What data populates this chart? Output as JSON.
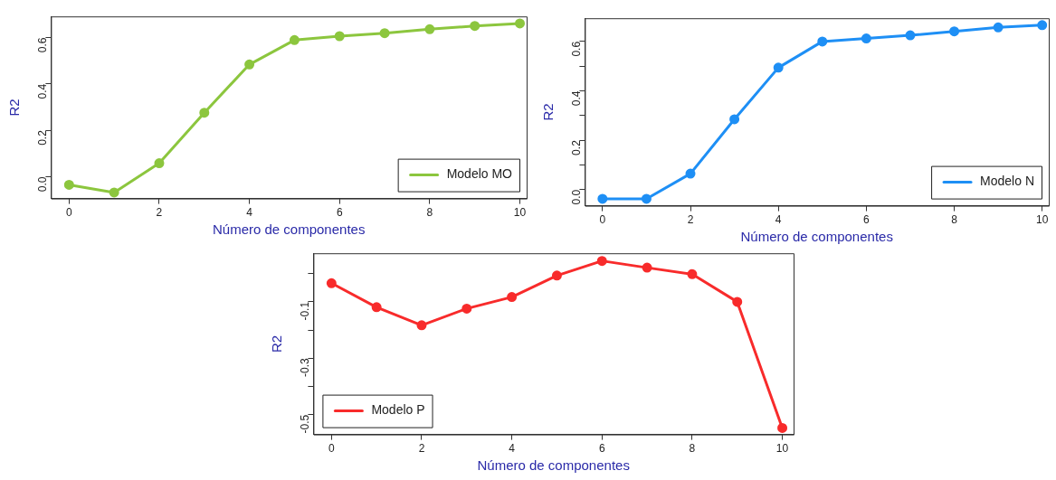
{
  "chart_data": [
    {
      "type": "line",
      "xlabel": "Número de componentes",
      "ylabel": "R2",
      "x": [
        0,
        1,
        2,
        3,
        4,
        5,
        6,
        7,
        8,
        9,
        10
      ],
      "series": [
        {
          "name": "Modelo MO",
          "color": "#8cc63e",
          "values": [
            -0.035,
            -0.068,
            0.058,
            0.276,
            0.484,
            0.589,
            0.606,
            0.619,
            0.636,
            0.65,
            0.661
          ]
        }
      ],
      "xlim": [
        -0.4,
        10.15
      ],
      "xticks": [
        0,
        2,
        4,
        6,
        8,
        10
      ],
      "ylim": [
        -0.094,
        0.691
      ],
      "yticks": [
        {
          "value": 0,
          "label": "0.0"
        },
        0.2,
        0.4,
        0.6
      ],
      "legend": "bottom right",
      "marker": "circle",
      "line_style": "solid",
      "grid": false
    },
    {
      "type": "line",
      "xlabel": "Número de componentes",
      "ylabel": "R2",
      "x": [
        0,
        1,
        2,
        3,
        4,
        5,
        6,
        7,
        8,
        9,
        10
      ],
      "series": [
        {
          "name": "Modelo N",
          "color": "#1e8ff5",
          "values": [
            -0.037,
            -0.037,
            0.065,
            0.285,
            0.494,
            0.6,
            0.612,
            0.625,
            0.641,
            0.657,
            0.666
          ]
        }
      ],
      "xlim": [
        -0.4,
        10.15
      ],
      "xticks": [
        0,
        2,
        4,
        6,
        8,
        10
      ],
      "ylim": [
        -0.065,
        0.694
      ],
      "yticks": [
        {
          "value": 0,
          "label": "0.0"
        },
        {
          "value": 0.1,
          "label": null
        },
        0.2,
        {
          "value": 0.3,
          "label": null
        },
        0.4,
        {
          "value": 0.5,
          "label": null
        },
        0.6
      ],
      "legend": "bottom right",
      "marker": "circle",
      "line_style": "solid",
      "grid": false
    },
    {
      "type": "line",
      "xlabel": "Número de componentes",
      "ylabel": "R2",
      "x": [
        0,
        1,
        2,
        3,
        4,
        5,
        6,
        7,
        8,
        9,
        10
      ],
      "series": [
        {
          "name": "Modelo P",
          "color": "#f82b2b",
          "values": [
            -0.034,
            -0.119,
            -0.183,
            -0.124,
            -0.083,
            -0.007,
            0.045,
            0.021,
            -0.002,
            -0.1,
            -0.547
          ]
        }
      ],
      "xlim": [
        -0.4,
        10.25
      ],
      "xticks": [
        0,
        2,
        4,
        6,
        8,
        10
      ],
      "ylim": [
        -0.57,
        0.072
      ],
      "yticks": [
        {
          "value": 0,
          "label": null
        },
        -0.1,
        {
          "value": -0.2,
          "label": null
        },
        -0.3,
        {
          "value": -0.4,
          "label": null
        },
        -0.5
      ],
      "legend": "bottom left",
      "marker": "circle",
      "line_style": "solid",
      "grid": false
    }
  ]
}
